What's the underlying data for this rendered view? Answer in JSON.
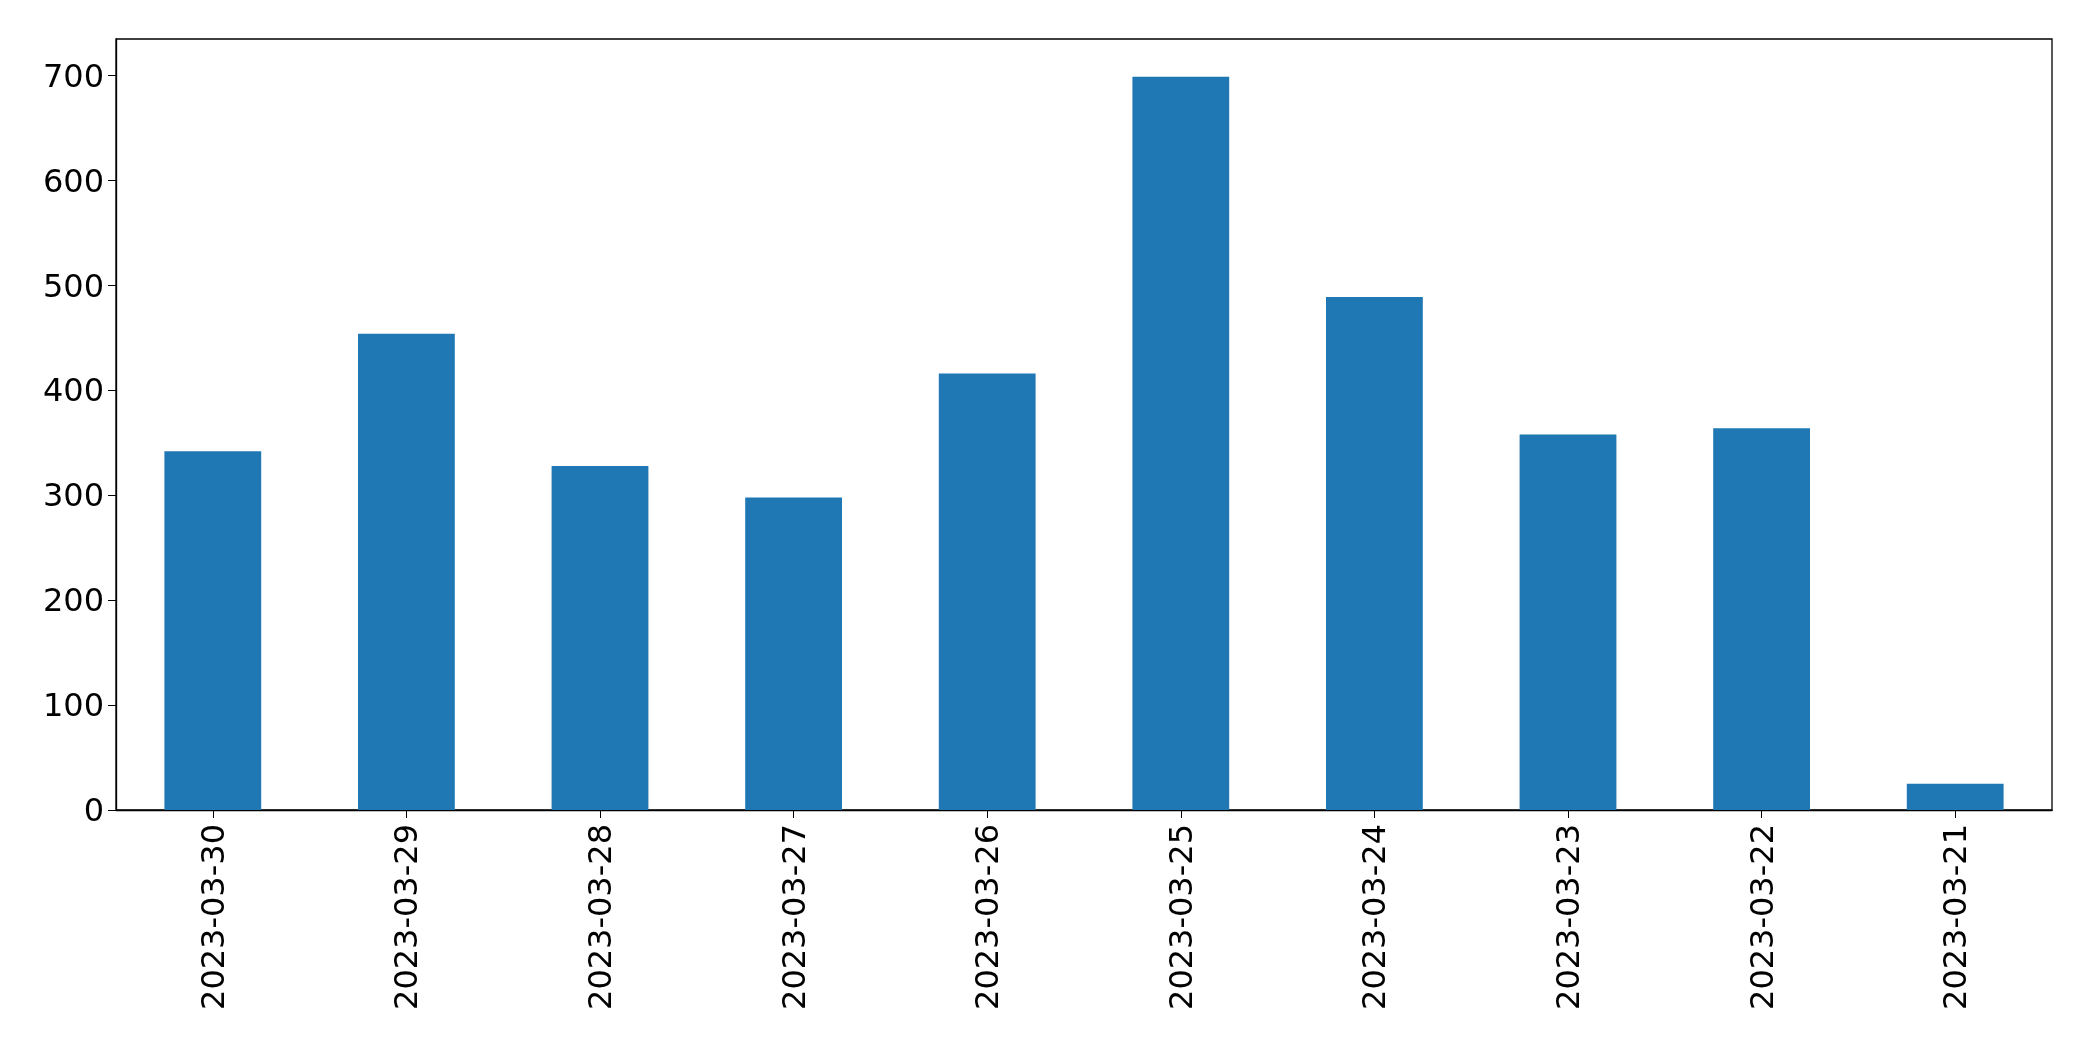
{
  "chart_data": {
    "type": "bar",
    "categories": [
      "2023-03-30",
      "2023-03-29",
      "2023-03-28",
      "2023-03-27",
      "2023-03-26",
      "2023-03-25",
      "2023-03-24",
      "2023-03-23",
      "2023-03-22",
      "2023-03-21"
    ],
    "values": [
      342,
      454,
      328,
      298,
      416,
      699,
      489,
      358,
      364,
      25
    ],
    "color": "#1f77b4",
    "ylim": [
      0,
      735
    ],
    "yticks": [
      0,
      100,
      200,
      300,
      400,
      500,
      600,
      700
    ],
    "grid": false
  }
}
